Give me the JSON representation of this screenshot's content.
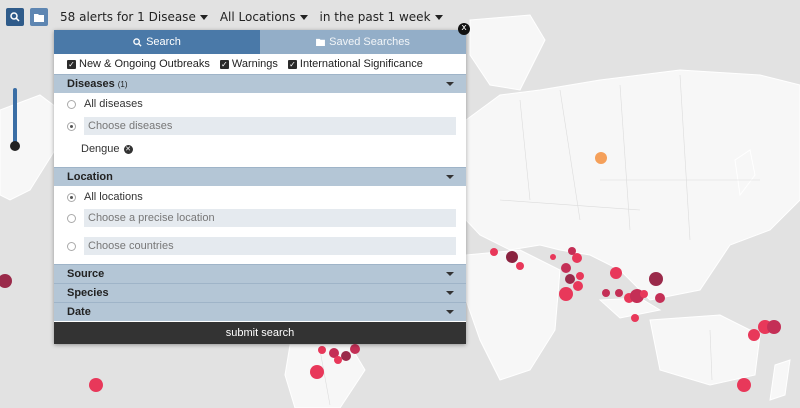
{
  "toolbar": {
    "search_icon": "search-icon",
    "folder_icon": "folder-icon",
    "alerts_filter": "58 alerts for 1 Disease",
    "location_filter": "All Locations",
    "time_filter": "in the past 1 week"
  },
  "panel": {
    "close_label": "x",
    "tabs": [
      {
        "label": "Search",
        "icon": "search-icon"
      },
      {
        "label": "Saved Searches",
        "icon": "folder-icon"
      }
    ],
    "checks": [
      {
        "label": "New & Ongoing Outbreaks",
        "checked": true
      },
      {
        "label": "Warnings",
        "checked": true
      },
      {
        "label": "International Significance",
        "checked": true
      }
    ],
    "diseases": {
      "title": "Diseases",
      "count": "(1)",
      "option_all": "All diseases",
      "option_choose": "Choose diseases",
      "selected_tag": "Dengue"
    },
    "location": {
      "title": "Location",
      "option_all": "All locations",
      "option_precise": "Choose a precise location",
      "option_countries": "Choose countries"
    },
    "source_title": "Source",
    "species_title": "Species",
    "date_title": "Date",
    "submit_label": "submit search"
  },
  "colors": {
    "primary": "#4a79a8",
    "alert_red": "#e8385a",
    "alert_dark": "#8a2340",
    "alert_orange": "#f5a05a"
  }
}
